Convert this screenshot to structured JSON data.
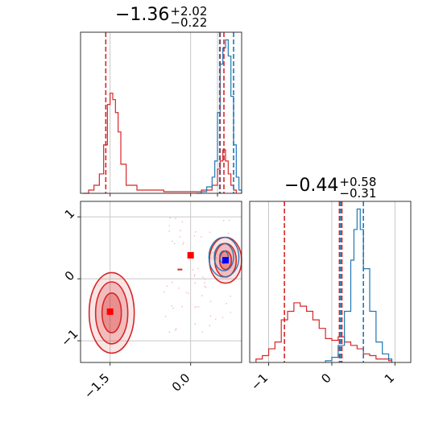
{
  "titles": {
    "panel1": {
      "value": "−1.36",
      "plus": "+2.02",
      "minus": "−0.22"
    },
    "panel2": {
      "value": "−0.44",
      "plus": "+0.58",
      "minus": "−0.31"
    }
  },
  "colors": {
    "red": "#d62728",
    "blue": "#1f77b4",
    "grid": "#c8c8c8",
    "square_blue": "#0000ff",
    "square_red": "#ff0000"
  },
  "chart_data": [
    {
      "type": "histogram",
      "panel": "top-left",
      "xlim": [
        -2.05,
        0.95
      ],
      "grid": true,
      "vlines_red": [
        -1.58,
        0.55,
        0.62
      ],
      "vlines_blue": [
        0.54,
        0.8
      ],
      "series": [
        {
          "color": "red",
          "bins": [
            [
              -2.0,
              0
            ],
            [
              -1.9,
              0.02
            ],
            [
              -1.8,
              0.05
            ],
            [
              -1.7,
              0.12
            ],
            [
              -1.62,
              0.3
            ],
            [
              -1.55,
              0.55
            ],
            [
              -1.5,
              0.62
            ],
            [
              -1.45,
              0.58
            ],
            [
              -1.4,
              0.5
            ],
            [
              -1.35,
              0.38
            ],
            [
              -1.3,
              0.18
            ],
            [
              -1.2,
              0.05
            ],
            [
              -1.0,
              0.02
            ],
            [
              -0.5,
              0.01
            ],
            [
              0.0,
              0.01
            ],
            [
              0.2,
              0.02
            ],
            [
              0.4,
              0.05
            ],
            [
              0.5,
              0.15
            ],
            [
              0.55,
              0.2
            ],
            [
              0.6,
              0.27
            ],
            [
              0.65,
              0.2
            ],
            [
              0.7,
              0.12
            ],
            [
              0.75,
              0.05
            ],
            [
              0.8,
              0.02
            ]
          ]
        },
        {
          "color": "blue",
          "bins": [
            [
              0.1,
              0
            ],
            [
              0.2,
              0.01
            ],
            [
              0.3,
              0.04
            ],
            [
              0.4,
              0.1
            ],
            [
              0.45,
              0.2
            ],
            [
              0.5,
              0.5
            ],
            [
              0.55,
              0.8
            ],
            [
              0.6,
              0.9
            ],
            [
              0.65,
              0.95
            ],
            [
              0.7,
              0.85
            ],
            [
              0.75,
              0.6
            ],
            [
              0.8,
              0.3
            ],
            [
              0.85,
              0.1
            ],
            [
              0.9,
              0.02
            ]
          ]
        }
      ]
    },
    {
      "type": "scatter-contour",
      "panel": "bottom-left",
      "xlim": [
        -2.05,
        0.95
      ],
      "ylim": [
        -1.35,
        1.25
      ],
      "xticks": [
        "−1.5",
        "0.0"
      ],
      "yticks": [
        "1",
        "0",
        "−1"
      ],
      "grid": true,
      "markers": [
        {
          "color": "red",
          "x": -1.5,
          "y": -0.53
        },
        {
          "color": "red",
          "x": 0.0,
          "y": 0.38
        },
        {
          "color": "blue",
          "x": 0.65,
          "y": 0.3
        }
      ],
      "contours_red": [
        {
          "cx": -1.47,
          "cy": -0.55,
          "rx": 0.42,
          "ry": 0.65,
          "level": 0.4
        },
        {
          "cx": -1.47,
          "cy": -0.55,
          "rx": 0.3,
          "ry": 0.5,
          "level": 0.7
        },
        {
          "cx": -1.47,
          "cy": -0.55,
          "rx": 0.18,
          "ry": 0.32,
          "level": 1.0
        },
        {
          "cx": 0.65,
          "cy": 0.3,
          "rx": 0.3,
          "ry": 0.37,
          "level": 0.4
        },
        {
          "cx": 0.65,
          "cy": 0.3,
          "rx": 0.2,
          "ry": 0.27,
          "level": 0.7
        },
        {
          "cx": 0.65,
          "cy": 0.3,
          "rx": 0.11,
          "ry": 0.15,
          "level": 1.0
        }
      ],
      "contours_blue": [
        {
          "cx": 0.62,
          "cy": 0.35,
          "rx": 0.28,
          "ry": 0.32
        },
        {
          "cx": 0.62,
          "cy": 0.35,
          "rx": 0.18,
          "ry": 0.22
        },
        {
          "cx": 0.62,
          "cy": 0.35,
          "rx": 0.08,
          "ry": 0.1
        }
      ]
    },
    {
      "type": "histogram",
      "panel": "bottom-right",
      "xlim": [
        -1.3,
        1.25
      ],
      "xticks": [
        "−1",
        "0",
        "1"
      ],
      "grid": true,
      "vlines_red": [
        -0.75,
        0.12,
        0.16
      ],
      "vlines_blue": [
        0.14,
        0.5
      ],
      "series": [
        {
          "color": "red",
          "bins": [
            [
              -1.2,
              0.02
            ],
            [
              -1.1,
              0.04
            ],
            [
              -1.0,
              0.08
            ],
            [
              -0.9,
              0.12
            ],
            [
              -0.8,
              0.25
            ],
            [
              -0.7,
              0.3
            ],
            [
              -0.6,
              0.35
            ],
            [
              -0.5,
              0.33
            ],
            [
              -0.4,
              0.3
            ],
            [
              -0.3,
              0.25
            ],
            [
              -0.2,
              0.2
            ],
            [
              -0.1,
              0.14
            ],
            [
              0.0,
              0.13
            ],
            [
              0.1,
              0.15
            ],
            [
              0.2,
              0.12
            ],
            [
              0.3,
              0.1
            ],
            [
              0.4,
              0.08
            ],
            [
              0.5,
              0.05
            ],
            [
              0.6,
              0.04
            ],
            [
              0.7,
              0.02
            ],
            [
              0.8,
              0.02
            ],
            [
              0.9,
              0.01
            ]
          ]
        },
        {
          "color": "blue",
          "bins": [
            [
              -0.1,
              0.01
            ],
            [
              0.0,
              0.03
            ],
            [
              0.1,
              0.1
            ],
            [
              0.2,
              0.3
            ],
            [
              0.3,
              0.6
            ],
            [
              0.35,
              0.78
            ],
            [
              0.4,
              0.9
            ],
            [
              0.45,
              0.78
            ],
            [
              0.5,
              0.55
            ],
            [
              0.6,
              0.3
            ],
            [
              0.7,
              0.12
            ],
            [
              0.8,
              0.05
            ],
            [
              0.9,
              0.02
            ]
          ]
        }
      ]
    }
  ]
}
